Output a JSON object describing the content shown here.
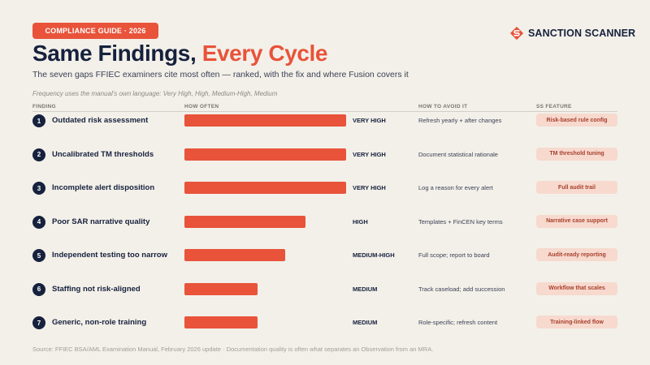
{
  "header": {
    "badge": "COMPLIANCE GUIDE · 2026",
    "title_main": "Same Findings, ",
    "title_accent": "Every Cycle",
    "subtitle": "The seven gaps FFIEC examiners cite most often — ranked, with the fix and where Fusion covers it",
    "note": "Frequency uses the manual's own language: Very High, High, Medium-High, Medium"
  },
  "logo": {
    "text": "SANCTION SCANNER",
    "icon": "sanction-scanner-logo-icon",
    "color": "#e8533a"
  },
  "columns": {
    "finding": "FINDING",
    "how_often": "HOW OFTEN",
    "avoid": "HOW TO AVOID IT",
    "feature": "SS FEATURE"
  },
  "colors": {
    "accent": "#e8533a",
    "navy": "#16213d",
    "pill_bg": "#f7d9ce",
    "pill_text": "#a8402c",
    "background": "#f3f0e9"
  },
  "chart_data": {
    "type": "bar",
    "orientation": "horizontal",
    "level_scale": [
      "MEDIUM",
      "MEDIUM-HIGH",
      "HIGH",
      "VERY HIGH"
    ],
    "rows": [
      {
        "rank": "1",
        "finding": "Outdated risk assessment",
        "frequency": "VERY HIGH",
        "level": 4,
        "fix": "Refresh yearly + after changes",
        "feature": "Risk-based rule config"
      },
      {
        "rank": "2",
        "finding": "Uncalibrated TM thresholds",
        "frequency": "VERY HIGH",
        "level": 4,
        "fix": "Document statistical rationale",
        "feature": "TM threshold tuning"
      },
      {
        "rank": "3",
        "finding": "Incomplete alert disposition",
        "frequency": "VERY HIGH",
        "level": 4,
        "fix": "Log a reason for every alert",
        "feature": "Full audit trail"
      },
      {
        "rank": "4",
        "finding": "Poor SAR narrative quality",
        "frequency": "HIGH",
        "level": 3,
        "fix": "Templates + FinCEN key terms",
        "feature": "Narrative case support"
      },
      {
        "rank": "5",
        "finding": "Independent testing too narrow",
        "frequency": "MEDIUM-HIGH",
        "level": 2.5,
        "fix": "Full scope; report to board",
        "feature": "Audit-ready reporting"
      },
      {
        "rank": "6",
        "finding": "Staffing not risk-aligned",
        "frequency": "MEDIUM",
        "level": 1.8,
        "fix": "Track caseload; add succession",
        "feature": "Workflow that scales"
      },
      {
        "rank": "7",
        "finding": "Generic, non-role training",
        "frequency": "MEDIUM",
        "level": 1.8,
        "fix": "Role-specific; refresh content",
        "feature": "Training-linked flow"
      }
    ]
  },
  "footer": {
    "source": "Source: FFIEC BSA/AML Examination Manual, February 2026 update · Documentation quality is often what separates an Observation from an MRA."
  }
}
